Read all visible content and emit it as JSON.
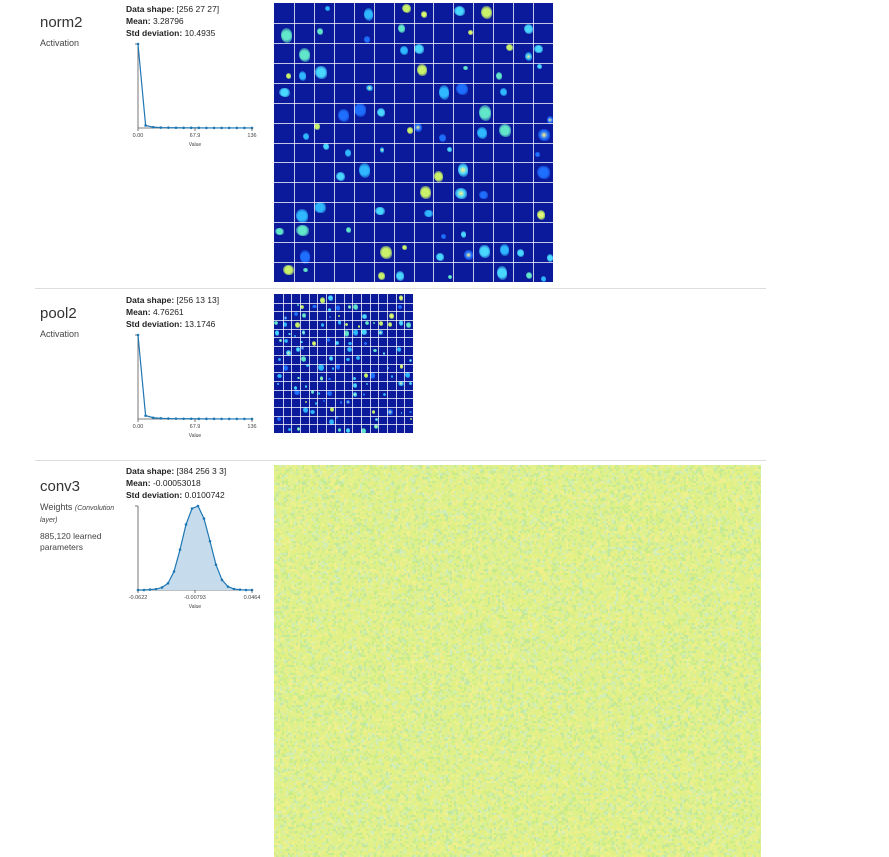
{
  "layers": [
    {
      "name": "norm2",
      "type": "Activation",
      "type_note": "",
      "params": "",
      "shape_label": "Data shape:",
      "shape": "[256 27 27]",
      "mean_label": "Mean:",
      "mean": "3.28796",
      "std_label": "Std deviation:",
      "std": "10.4935",
      "hist": {
        "ticks": [
          "0.00",
          "67.9",
          "136"
        ],
        "xlabel": "Value",
        "values": [
          1.0,
          0.03,
          0.01,
          0.005,
          0.004,
          0.003,
          0.002,
          0.002,
          0.002,
          0.001,
          0.001,
          0.001,
          0.001,
          0.001,
          0.001,
          0.001
        ]
      },
      "grid": 14
    },
    {
      "name": "pool2",
      "type": "Activation",
      "type_note": "",
      "params": "",
      "shape_label": "Data shape:",
      "shape": "[256 13 13]",
      "mean_label": "Mean:",
      "mean": "4.76261",
      "std_label": "Std deviation:",
      "std": "13.1746",
      "hist": {
        "ticks": [
          "0.00",
          "67.9",
          "136"
        ],
        "xlabel": "Value",
        "values": [
          1.0,
          0.04,
          0.015,
          0.008,
          0.005,
          0.004,
          0.003,
          0.003,
          0.002,
          0.002,
          0.002,
          0.001,
          0.001,
          0.001,
          0.001,
          0.001
        ]
      },
      "grid": 16
    },
    {
      "name": "conv3",
      "type": "Weights",
      "type_note": "(Convolution layer)",
      "params": "885,120 learned parameters",
      "shape_label": "Data shape:",
      "shape": "[384 256 3 3]",
      "mean_label": "Mean:",
      "mean": "-0.00053018",
      "std_label": "Std deviation:",
      "std": "0.0100742",
      "hist": {
        "ticks": [
          "-0.0622",
          "-0.00793",
          "0.0464"
        ],
        "xlabel": "Value",
        "values": [
          0.0,
          0.0,
          0.005,
          0.01,
          0.03,
          0.08,
          0.22,
          0.48,
          0.78,
          0.97,
          1.0,
          0.85,
          0.58,
          0.3,
          0.12,
          0.04,
          0.012,
          0.004,
          0.0,
          0.0
        ]
      }
    }
  ],
  "colors": {
    "activation_bg": "#0a1a9a",
    "weights_bg": "#dff08a",
    "hist_line": "#1f77b4",
    "hist_fill": "#c6dcec"
  }
}
